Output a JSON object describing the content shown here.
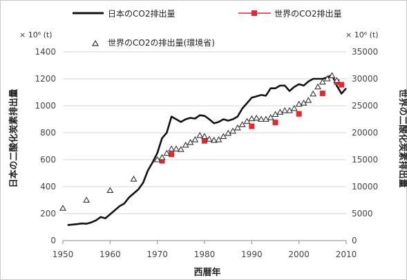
{
  "chart_data": {
    "type": "line",
    "xlabel": "西暦年",
    "ylabel_left": "日本の二酸化炭素排出量",
    "ylabel_right": "世界の二酸化炭素排出量",
    "unit_left": "× 10⁶ (t)",
    "unit_right": "× 10⁶ (t)",
    "xlim": [
      1950,
      2010
    ],
    "ylim_left": [
      0,
      1400
    ],
    "ylim_right": [
      0,
      35000
    ],
    "x_ticks": [
      1950,
      1960,
      1970,
      1980,
      1990,
      2000,
      2010
    ],
    "y_ticks_left": [
      0,
      200,
      400,
      600,
      800,
      1000,
      1200,
      1400
    ],
    "y_ticks_right": [
      0,
      5000,
      10000,
      15000,
      20000,
      25000,
      30000,
      35000
    ],
    "grid": "horizontal",
    "legend": [
      "日本のCO2排出量",
      "世界のCO2排出量",
      "世界のCO2の排出量(環境省)"
    ],
    "series": [
      {
        "name": "日本のCO2排出量",
        "axis": "left",
        "style": "line",
        "color": "#111111",
        "points": [
          [
            1951,
            115
          ],
          [
            1953,
            122
          ],
          [
            1954,
            127
          ],
          [
            1955,
            125
          ],
          [
            1956,
            135
          ],
          [
            1957,
            150
          ],
          [
            1958,
            175
          ],
          [
            1959,
            165
          ],
          [
            1960,
            195
          ],
          [
            1961,
            225
          ],
          [
            1962,
            255
          ],
          [
            1963,
            275
          ],
          [
            1964,
            320
          ],
          [
            1965,
            350
          ],
          [
            1966,
            380
          ],
          [
            1967,
            430
          ],
          [
            1968,
            520
          ],
          [
            1969,
            580
          ],
          [
            1970,
            650
          ],
          [
            1971,
            760
          ],
          [
            1972,
            800
          ],
          [
            1973,
            920
          ],
          [
            1974,
            900
          ],
          [
            1975,
            880
          ],
          [
            1976,
            900
          ],
          [
            1977,
            910
          ],
          [
            1978,
            905
          ],
          [
            1979,
            930
          ],
          [
            1980,
            925
          ],
          [
            1981,
            900
          ],
          [
            1982,
            870
          ],
          [
            1983,
            880
          ],
          [
            1984,
            900
          ],
          [
            1985,
            890
          ],
          [
            1986,
            900
          ],
          [
            1987,
            920
          ],
          [
            1988,
            980
          ],
          [
            1989,
            1020
          ],
          [
            1990,
            1060
          ],
          [
            1991,
            1070
          ],
          [
            1992,
            1080
          ],
          [
            1993,
            1075
          ],
          [
            1994,
            1130
          ],
          [
            1995,
            1130
          ],
          [
            1996,
            1150
          ],
          [
            1997,
            1150
          ],
          [
            1998,
            1110
          ],
          [
            1999,
            1140
          ],
          [
            2000,
            1160
          ],
          [
            2001,
            1150
          ],
          [
            2002,
            1180
          ],
          [
            2003,
            1200
          ],
          [
            2004,
            1200
          ],
          [
            2005,
            1200
          ],
          [
            2006,
            1210
          ],
          [
            2007,
            1230
          ],
          [
            2008,
            1150
          ],
          [
            2009,
            1090
          ],
          [
            2010,
            1130
          ]
        ]
      },
      {
        "name": "世界のCO2排出量",
        "axis": "right",
        "style": "square-marker",
        "color": "#e8262c",
        "points": [
          [
            1971,
            14800
          ],
          [
            1973,
            16000
          ],
          [
            1980,
            18500
          ],
          [
            1990,
            21200
          ],
          [
            1995,
            21900
          ],
          [
            2000,
            23500
          ],
          [
            2005,
            27300
          ],
          [
            2008,
            29400
          ],
          [
            2009,
            28900
          ]
        ]
      },
      {
        "name": "世界のCO2の排出量(環境省)",
        "axis": "right",
        "style": "triangle-marker",
        "color": "#333333",
        "points": [
          [
            1950,
            6000
          ],
          [
            1955,
            7500
          ],
          [
            1960,
            9300
          ],
          [
            1965,
            11400
          ],
          [
            1970,
            15000
          ],
          [
            1971,
            15400
          ],
          [
            1972,
            16200
          ],
          [
            1973,
            17000
          ],
          [
            1974,
            17000
          ],
          [
            1975,
            16900
          ],
          [
            1976,
            17700
          ],
          [
            1977,
            18200
          ],
          [
            1978,
            18700
          ],
          [
            1979,
            19500
          ],
          [
            1980,
            19300
          ],
          [
            1981,
            18800
          ],
          [
            1982,
            18600
          ],
          [
            1983,
            18700
          ],
          [
            1984,
            19300
          ],
          [
            1985,
            19900
          ],
          [
            1986,
            20300
          ],
          [
            1987,
            20900
          ],
          [
            1988,
            21500
          ],
          [
            1989,
            22100
          ],
          [
            1990,
            22600
          ],
          [
            1991,
            22700
          ],
          [
            1992,
            22500
          ],
          [
            1993,
            22500
          ],
          [
            1994,
            22800
          ],
          [
            1995,
            23400
          ],
          [
            1996,
            23800
          ],
          [
            1997,
            24100
          ],
          [
            1998,
            24100
          ],
          [
            1999,
            24500
          ],
          [
            2000,
            25300
          ],
          [
            2001,
            25500
          ],
          [
            2002,
            26000
          ],
          [
            2003,
            27200
          ],
          [
            2004,
            28500
          ],
          [
            2005,
            29400
          ],
          [
            2006,
            30000
          ],
          [
            2007,
            30600
          ],
          [
            2008,
            29700
          ]
        ]
      }
    ]
  }
}
